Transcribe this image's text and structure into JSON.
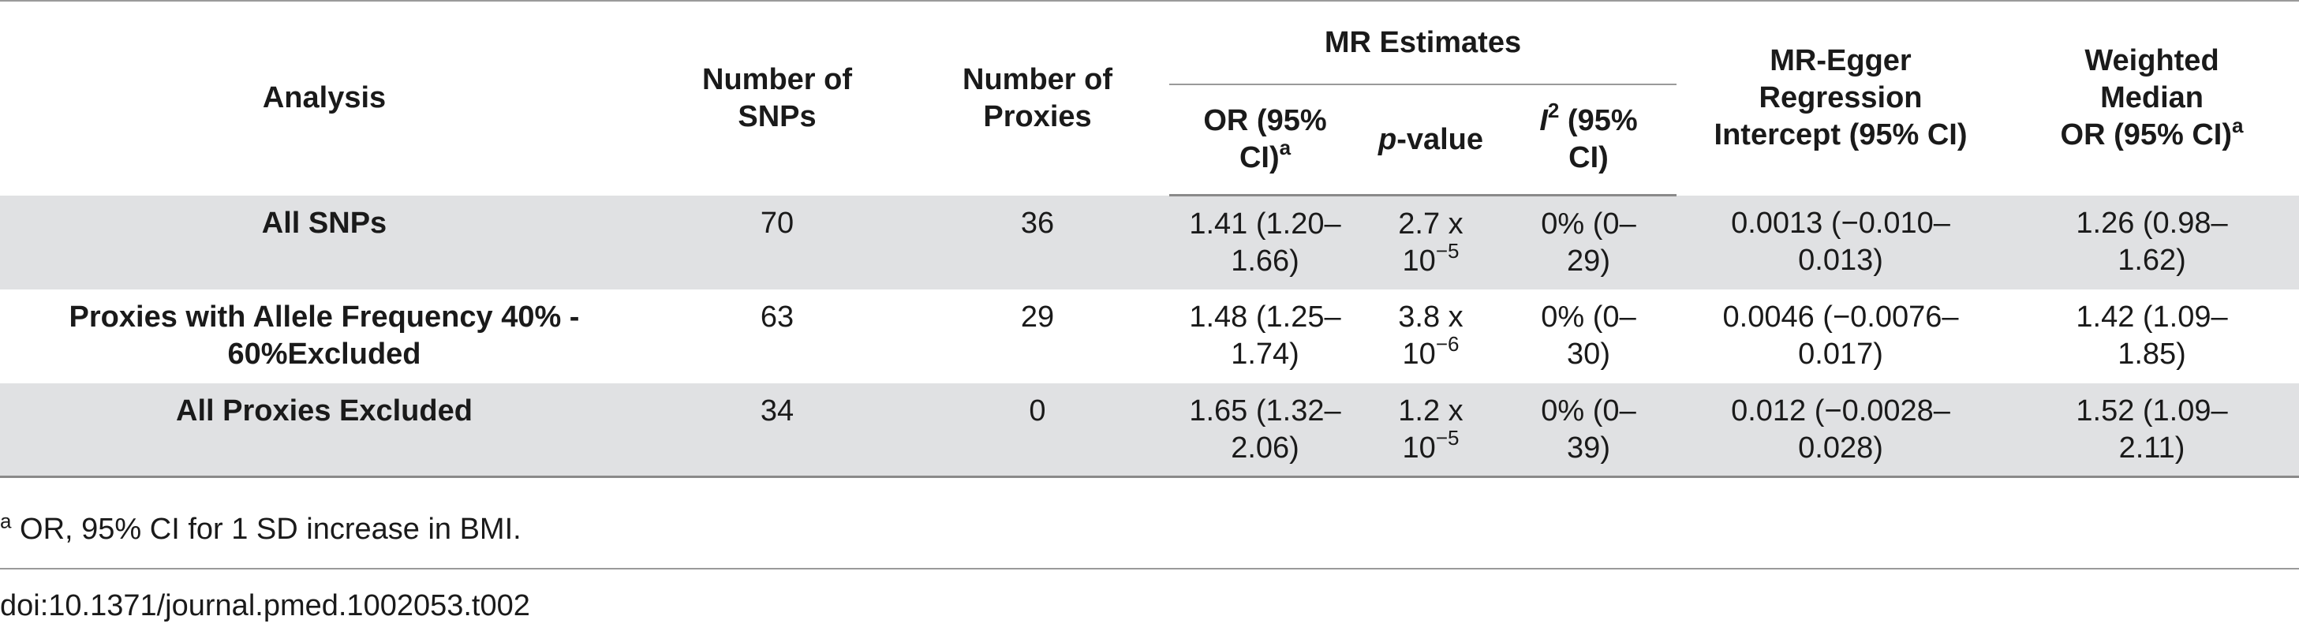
{
  "table": {
    "group_headers": {
      "mr_estimates": "MR Estimates",
      "mr_egger_line1": "MR-Egger",
      "mr_egger_line2": "Regression",
      "mr_egger_line3": "Intercept (95% CI)",
      "wm_line1": "Weighted",
      "wm_line2": "Median",
      "wm_line3": "OR (95% CI)",
      "wm_sup": "a"
    },
    "columns": {
      "analysis": "Analysis",
      "snps_line1": "Number of",
      "snps_line2": "SNPs",
      "proxies_line1": "Number of",
      "proxies_line2": "Proxies",
      "or_line1": "OR (95%",
      "or_line2": "CI)",
      "or_sup": "a",
      "p_italic": "p",
      "p_rest": "-value",
      "i2_italic": "I",
      "i2_sup": "2",
      "i2_rest": " (95%",
      "i2_line2": "CI)"
    },
    "rows": [
      {
        "analysis": "All SNPs",
        "snps": "70",
        "proxies": "36",
        "or_l1": "1.41 (1.20–",
        "or_l2": "1.66)",
        "p_l1": "2.7 x",
        "p_base": "10",
        "p_exp": "−5",
        "i2_l1": "0% (0–",
        "i2_l2": "29)",
        "egger_l1": "0.0013 (−0.010–",
        "egger_l2": "0.013)",
        "wm_l1": "1.26 (0.98–",
        "wm_l2": "1.62)"
      },
      {
        "analysis_l1": "Proxies with Allele Frequency 40% -",
        "analysis_l2": "60%Excluded",
        "snps": "63",
        "proxies": "29",
        "or_l1": "1.48 (1.25–",
        "or_l2": "1.74)",
        "p_l1": "3.8 x",
        "p_base": "10",
        "p_exp": "−6",
        "i2_l1": "0% (0–",
        "i2_l2": "30)",
        "egger_l1": "0.0046 (−0.0076–",
        "egger_l2": "0.017)",
        "wm_l1": "1.42 (1.09–",
        "wm_l2": "1.85)"
      },
      {
        "analysis": "All Proxies Excluded",
        "snps": "34",
        "proxies": "0",
        "or_l1": "1.65 (1.32–",
        "or_l2": "2.06)",
        "p_l1": "1.2 x",
        "p_base": "10",
        "p_exp": "−5",
        "i2_l1": "0% (0–",
        "i2_l2": "39)",
        "egger_l1": "0.012 (−0.0028–",
        "egger_l2": "0.028)",
        "wm_l1": "1.52 (1.09–",
        "wm_l2": "2.11)"
      }
    ]
  },
  "footnote": {
    "marker": "a",
    "text": " OR, 95% CI for 1 SD increase in BMI."
  },
  "doi": "doi:10.1371/journal.pmed.1002053.t002"
}
